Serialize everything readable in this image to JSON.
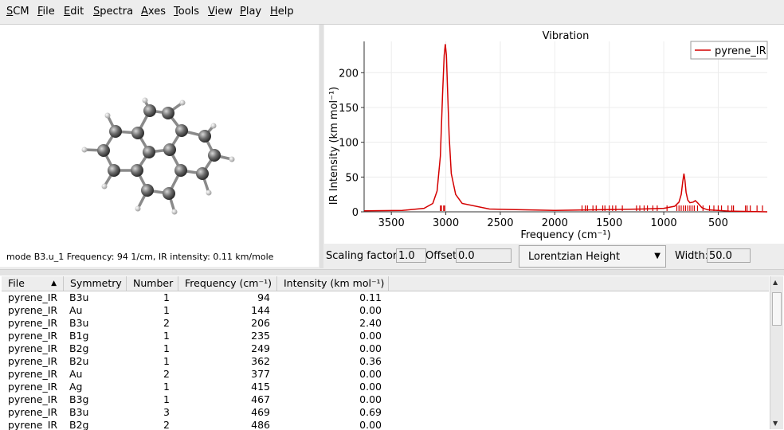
{
  "menubar": {
    "items": [
      {
        "u": "S",
        "rest": "CM"
      },
      {
        "u": "F",
        "rest": "ile"
      },
      {
        "u": "E",
        "rest": "dit"
      },
      {
        "u": "S",
        "rest": "pectra"
      },
      {
        "u": "A",
        "rest": "xes"
      },
      {
        "u": "T",
        "rest": "ools"
      },
      {
        "u": "V",
        "rest": "iew"
      },
      {
        "u": "P",
        "rest": "lay"
      },
      {
        "u": "H",
        "rest": "elp"
      }
    ]
  },
  "molecule": {
    "mode_text": "mode B3.u_1 Frequency:   94 1/cm, IR intensity:   0.11 km/mole"
  },
  "colors": {
    "spectrum": "#d40000",
    "atom_carbon": "#6b6b6b",
    "atom_hydrogen": "#eeeeee"
  },
  "chart_data": {
    "type": "line",
    "title": "Vibration",
    "xlabel": "Frequency (cm⁻¹)",
    "ylabel": "IR Intensity (km mol⁻¹)",
    "xlim": [
      3750,
      50
    ],
    "ylim": [
      0,
      245
    ],
    "x_ticks": [
      3500,
      3000,
      2500,
      2000,
      1500,
      1000,
      500
    ],
    "y_ticks": [
      0,
      50,
      100,
      150,
      200
    ],
    "grid": true,
    "legend_position": "top-right",
    "series": [
      {
        "name": "pyrene_IR",
        "x": [
          3750,
          3400,
          3200,
          3120,
          3080,
          3050,
          3030,
          3015,
          3005,
          2995,
          2985,
          2970,
          2950,
          2910,
          2850,
          2600,
          2000,
          1600,
          1200,
          1000,
          900,
          860,
          840,
          825,
          815,
          805,
          795,
          780,
          760,
          730,
          710,
          690,
          650,
          600,
          400,
          50
        ],
        "y": [
          1.5,
          2,
          5,
          12,
          30,
          80,
          170,
          225,
          241,
          225,
          180,
          110,
          55,
          25,
          12,
          4,
          2,
          3,
          4,
          5,
          8,
          14,
          25,
          44,
          55,
          45,
          28,
          17,
          13,
          14,
          16,
          13,
          6,
          3,
          1,
          0
        ]
      }
    ],
    "stick_positions": [
      3050,
      3040,
      3020,
      3010,
      1750,
      1720,
      1700,
      1650,
      1620,
      1560,
      1540,
      1500,
      1470,
      1440,
      1380,
      1250,
      1220,
      1180,
      1150,
      1100,
      1060,
      970,
      880,
      860,
      840,
      820,
      800,
      780,
      760,
      740,
      720,
      690,
      640,
      580,
      540,
      500,
      470,
      410,
      375,
      360,
      250,
      235,
      206,
      144,
      94
    ]
  },
  "controls": {
    "scaling_label": "Scaling factor:",
    "scaling_value": "1.0",
    "offset_label": "Offset:",
    "offset_value": "0.0",
    "broadening": "Lorentzian Height",
    "width_label": "Width:",
    "width_value": "50.0"
  },
  "table": {
    "headers": [
      "File",
      "Symmetry",
      "Number",
      "Frequency (cm⁻¹)",
      "Intensity (km mol⁻¹)"
    ],
    "rows": [
      [
        "pyrene_IR",
        "B3u",
        "1",
        "94",
        "0.11"
      ],
      [
        "pyrene_IR",
        "Au",
        "1",
        "144",
        "0.00"
      ],
      [
        "pyrene_IR",
        "B3u",
        "2",
        "206",
        "2.40"
      ],
      [
        "pyrene_IR",
        "B1g",
        "1",
        "235",
        "0.00"
      ],
      [
        "pyrene_IR",
        "B2g",
        "1",
        "249",
        "0.00"
      ],
      [
        "pyrene_IR",
        "B2u",
        "1",
        "362",
        "0.36"
      ],
      [
        "pyrene_IR",
        "Au",
        "2",
        "377",
        "0.00"
      ],
      [
        "pyrene_IR",
        "Ag",
        "1",
        "415",
        "0.00"
      ],
      [
        "pyrene_IR",
        "B3g",
        "1",
        "467",
        "0.00"
      ],
      [
        "pyrene_IR",
        "B3u",
        "3",
        "469",
        "0.69"
      ],
      [
        "pyrene_IR",
        "B2g",
        "2",
        "486",
        "0.00"
      ]
    ]
  }
}
